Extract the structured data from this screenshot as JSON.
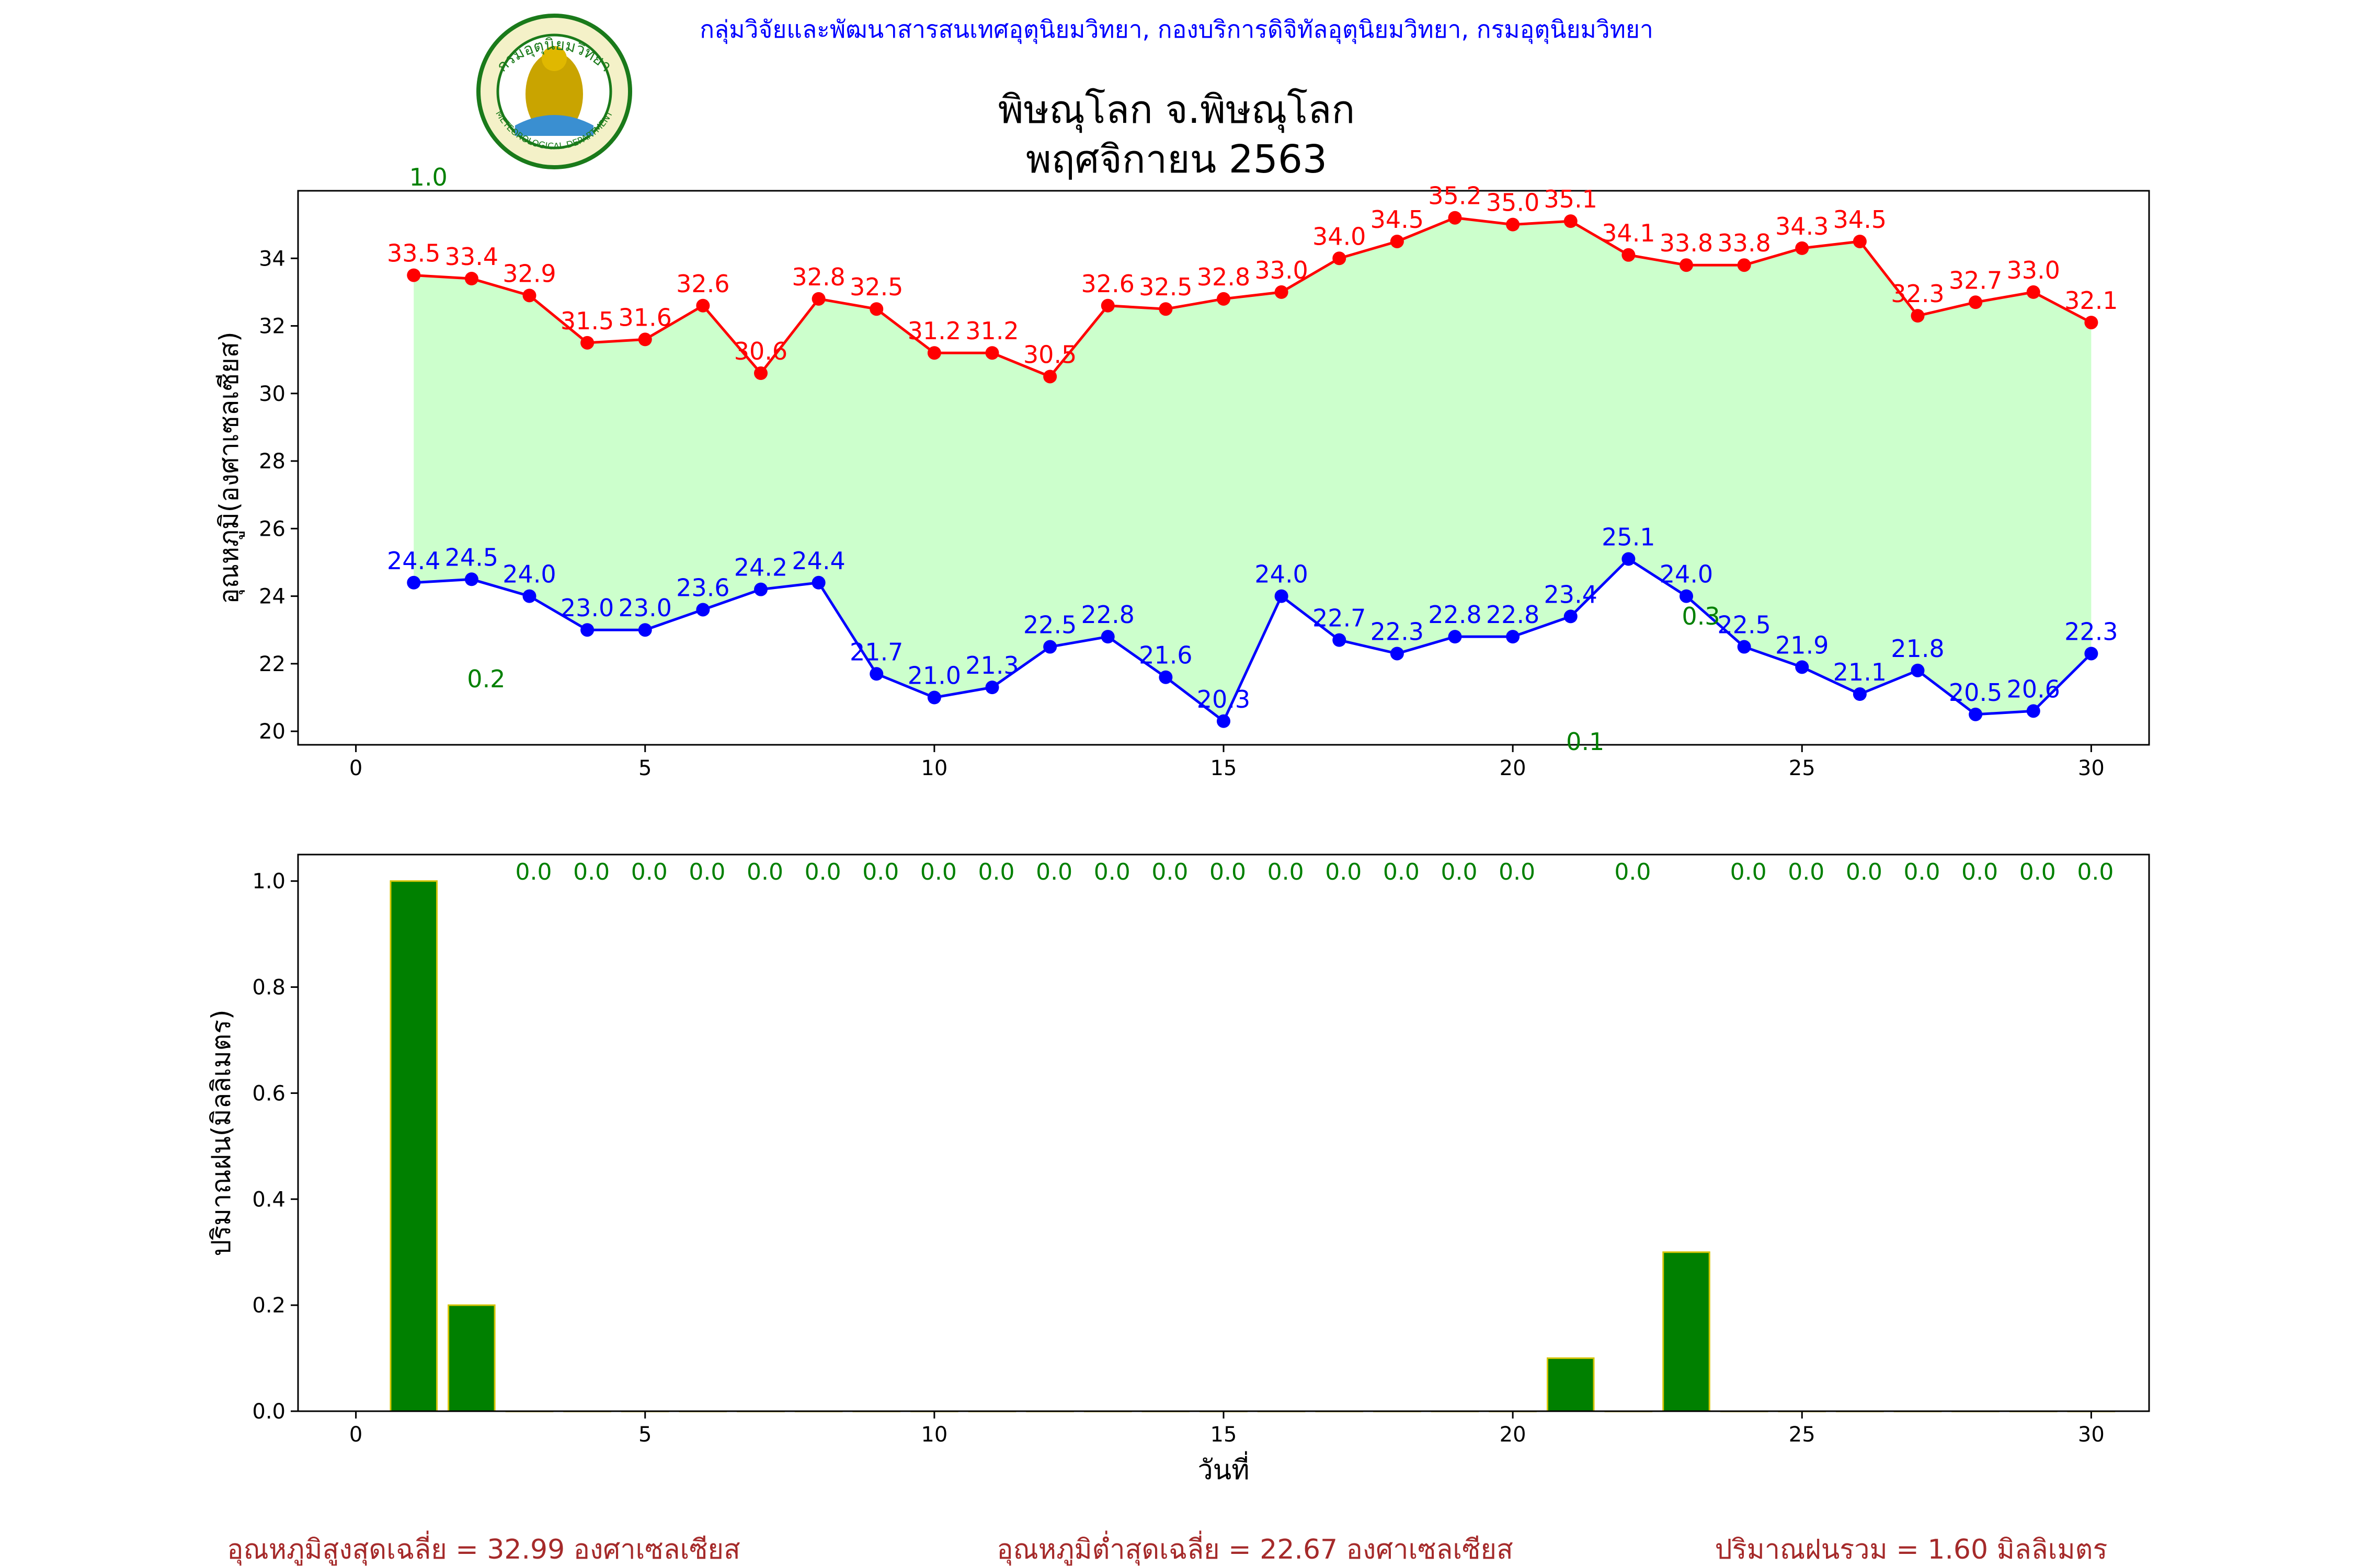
{
  "header": {
    "agency_line": "กลุ่มวิจัยและพัฒนาสารสนเทศอุตุนิยมวิทยา, กองบริการดิจิทัลอุตุนิยมวิทยา, กรมอุตุนิยมวิทยา",
    "title_line1": "พิษณุโลก จ.พิษณุโลก",
    "title_line2": "พฤศจิกายน 2563",
    "logo": {
      "name": "meteorological-department-seal",
      "arc_text": "กรมอุตุนิยมวิทยา",
      "bottom_text": "METEOROLOGICAL DEPARTMENT"
    }
  },
  "colors": {
    "max_temp": "#ff0000",
    "min_temp": "#0000ff",
    "band_fill": "#ccffcc",
    "rain_bar": "#008000",
    "rain_bar_edge": "#d4c400",
    "rain_label": "#008000",
    "summary": "#a52a2a",
    "agency": "#0000ff"
  },
  "chart_data": [
    {
      "type": "line",
      "ylabel": "อุณหภูมิ(องศาเซลเซียส)",
      "xlabel": "",
      "xlim": [
        -1,
        31
      ],
      "ylim": [
        19.6,
        36.0
      ],
      "xticks": [
        0,
        5,
        10,
        15,
        20,
        25,
        30
      ],
      "yticks": [
        20,
        22,
        24,
        26,
        28,
        30,
        32,
        34
      ],
      "x": [
        1,
        2,
        3,
        4,
        5,
        6,
        7,
        8,
        9,
        10,
        11,
        12,
        13,
        14,
        15,
        16,
        17,
        18,
        19,
        20,
        21,
        22,
        23,
        24,
        25,
        26,
        27,
        28,
        29,
        30
      ],
      "series": [
        {
          "name": "",
          "role": "max",
          "values": [
            33.5,
            33.4,
            32.9,
            31.5,
            31.6,
            32.6,
            30.6,
            32.8,
            32.5,
            31.2,
            31.2,
            30.5,
            32.6,
            32.5,
            32.8,
            33.0,
            34.0,
            34.5,
            35.2,
            35.0,
            35.1,
            34.1,
            33.8,
            33.8,
            34.3,
            34.5,
            32.3,
            32.7,
            33.0,
            32.1
          ]
        },
        {
          "name": "",
          "role": "min",
          "values": [
            24.4,
            24.5,
            24.0,
            23.0,
            23.0,
            23.6,
            24.2,
            24.4,
            21.7,
            21.0,
            21.3,
            22.5,
            22.8,
            21.6,
            20.3,
            24.0,
            22.7,
            22.3,
            22.8,
            22.8,
            23.4,
            25.1,
            24.0,
            22.5,
            21.9,
            21.1,
            21.8,
            20.5,
            20.6,
            22.3
          ]
        }
      ],
      "rain_annotations": [
        {
          "day": 1,
          "text": "1.0"
        },
        {
          "day": 2,
          "text": "0.2"
        },
        {
          "day": 21,
          "text": "0.1"
        },
        {
          "day": 23,
          "text": "0.3"
        }
      ],
      "grid": false
    },
    {
      "type": "bar",
      "ylabel": "ปริมาณฝน(มิลลิเมตร)",
      "xlabel": "วันที่",
      "xlim": [
        -1,
        31
      ],
      "ylim": [
        0,
        1.05
      ],
      "xticks": [
        0,
        5,
        10,
        15,
        20,
        25,
        30
      ],
      "yticks": [
        0.0,
        0.2,
        0.4,
        0.6,
        0.8,
        1.0
      ],
      "x": [
        1,
        2,
        3,
        4,
        5,
        6,
        7,
        8,
        9,
        10,
        11,
        12,
        13,
        14,
        15,
        16,
        17,
        18,
        19,
        20,
        21,
        22,
        23,
        24,
        25,
        26,
        27,
        28,
        29,
        30
      ],
      "values": [
        1.0,
        0.2,
        0.0,
        0.0,
        0.0,
        0.0,
        0.0,
        0.0,
        0.0,
        0.0,
        0.0,
        0.0,
        0.0,
        0.0,
        0.0,
        0.0,
        0.0,
        0.0,
        0.0,
        0.0,
        0.1,
        0.0,
        0.3,
        0.0,
        0.0,
        0.0,
        0.0,
        0.0,
        0.0,
        0.0
      ],
      "zero_labels": [
        "0.0",
        "0.0",
        "0.0",
        "0.0",
        "0.0",
        "0.0",
        "0.0",
        "0.0",
        "0.0",
        "0.0",
        "0.0",
        "0.0",
        "0.0",
        "0.0",
        "0.0",
        "0.0",
        "0.0",
        "0.0",
        "0.0",
        "0.0",
        "0.0",
        "0.0",
        "0.0",
        "0.0",
        "0.0",
        "0.0"
      ],
      "zero_label_days": [
        3,
        4,
        5,
        6,
        7,
        8,
        9,
        10,
        11,
        12,
        13,
        14,
        15,
        16,
        17,
        18,
        19,
        20,
        22,
        24,
        25,
        26,
        27,
        28,
        29,
        30
      ],
      "grid": false
    }
  ],
  "summary": {
    "avg_max": "อุณหภูมิสูงสุดเฉลี่ย = 32.99 องศาเซลเซียส",
    "avg_min": "อุณหภูมิต่ำสุดเฉลี่ย = 22.67 องศาเซลเซียส",
    "total_rain": "ปริมาณฝนรวม = 1.60 มิลลิเมตร"
  }
}
